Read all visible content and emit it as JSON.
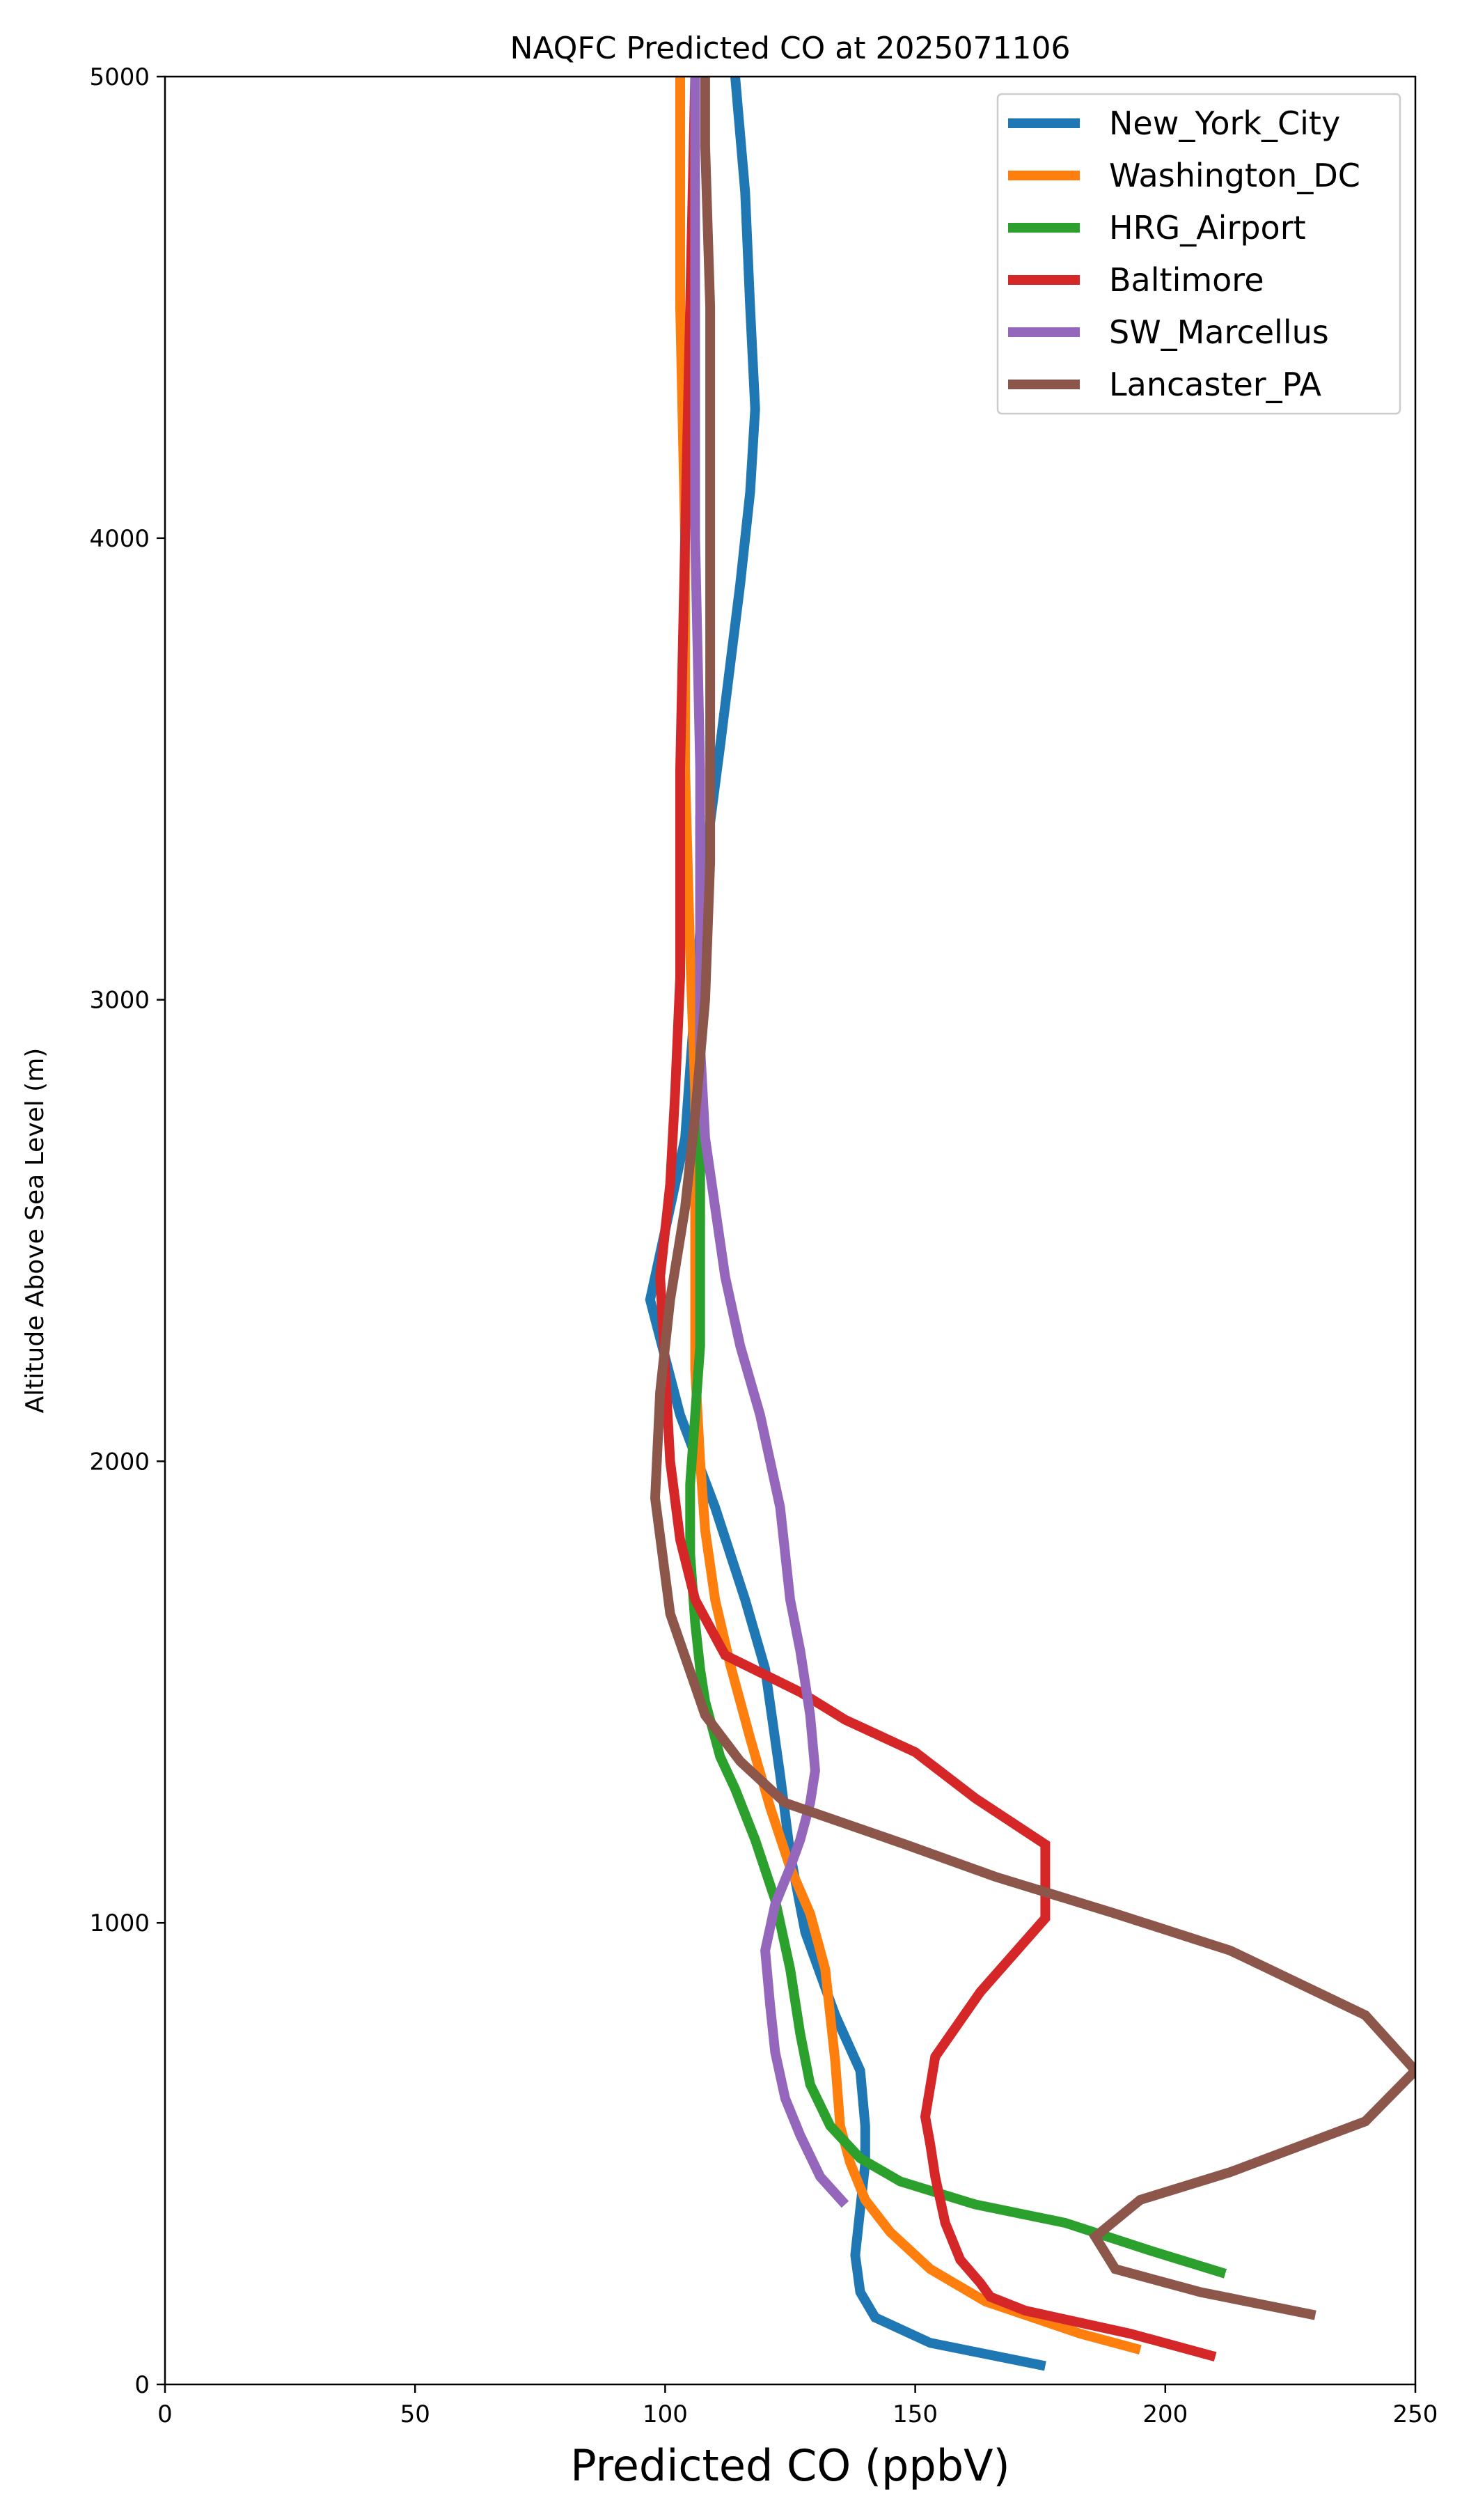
{
  "chart_data": {
    "type": "line",
    "title": "NAQFC Predicted CO at 2025071106",
    "xlabel": "Predicted CO (ppbV)",
    "ylabel": "Altitude Above Sea Level (m)",
    "xlim": [
      0,
      250
    ],
    "ylim": [
      0,
      5000
    ],
    "xticks": [
      0,
      50,
      100,
      150,
      200,
      250
    ],
    "yticks": [
      0,
      1000,
      2000,
      3000,
      4000,
      5000
    ],
    "grid": false,
    "legend_position": "top-right",
    "series": [
      {
        "name": "New_York_City",
        "color": "#1f77b4",
        "points": [
          [
            176,
            40
          ],
          [
            153,
            90
          ],
          [
            142,
            145
          ],
          [
            139,
            200
          ],
          [
            138,
            280
          ],
          [
            139,
            380
          ],
          [
            140,
            480
          ],
          [
            140,
            560
          ],
          [
            139,
            680
          ],
          [
            134,
            800
          ],
          [
            128,
            980
          ],
          [
            125,
            1150
          ],
          [
            123,
            1320
          ],
          [
            120,
            1550
          ],
          [
            116,
            1700
          ],
          [
            110,
            1900
          ],
          [
            103,
            2100
          ],
          [
            97,
            2350
          ],
          [
            101,
            2550
          ],
          [
            104,
            2700
          ],
          [
            106,
            3000
          ],
          [
            108,
            3300
          ],
          [
            111,
            3550
          ],
          [
            115,
            3900
          ],
          [
            117,
            4100
          ],
          [
            118,
            4280
          ],
          [
            117,
            4500
          ],
          [
            116,
            4750
          ],
          [
            114,
            5000
          ]
        ]
      },
      {
        "name": "Washington_DC",
        "color": "#ff7f0e",
        "points": [
          [
            195,
            75
          ],
          [
            183,
            110
          ],
          [
            164,
            180
          ],
          [
            153,
            250
          ],
          [
            145,
            330
          ],
          [
            140,
            400
          ],
          [
            137,
            480
          ],
          [
            135,
            560
          ],
          [
            134,
            700
          ],
          [
            132,
            900
          ],
          [
            129,
            1020
          ],
          [
            125,
            1120
          ],
          [
            121,
            1250
          ],
          [
            117,
            1400
          ],
          [
            113,
            1560
          ],
          [
            110,
            1700
          ],
          [
            108,
            1850
          ],
          [
            107,
            2000
          ],
          [
            106,
            2200
          ],
          [
            106,
            2500
          ],
          [
            106,
            2800
          ],
          [
            105,
            3100
          ],
          [
            104,
            3500
          ],
          [
            104,
            4000
          ],
          [
            103,
            4500
          ],
          [
            103,
            5000
          ]
        ]
      },
      {
        "name": "HRG_Airport",
        "color": "#2ca02c",
        "points": [
          [
            212,
            240
          ],
          [
            197,
            290
          ],
          [
            180,
            350
          ],
          [
            162,
            390
          ],
          [
            147,
            440
          ],
          [
            139,
            490
          ],
          [
            133,
            560
          ],
          [
            129,
            650
          ],
          [
            127,
            760
          ],
          [
            125,
            900
          ],
          [
            122,
            1050
          ],
          [
            118,
            1180
          ],
          [
            114,
            1290
          ],
          [
            111,
            1360
          ],
          [
            108,
            1480
          ],
          [
            107,
            1550
          ],
          [
            106,
            1650
          ],
          [
            105,
            1800
          ],
          [
            105,
            1950
          ],
          [
            106,
            2100
          ],
          [
            107,
            2250
          ],
          [
            107,
            2500
          ],
          [
            107,
            2800
          ],
          [
            107,
            3000
          ],
          [
            107,
            3200
          ],
          [
            107,
            3400
          ]
        ]
      },
      {
        "name": "Baltimore",
        "color": "#d62728",
        "points": [
          [
            210,
            60
          ],
          [
            193,
            110
          ],
          [
            172,
            160
          ],
          [
            165,
            190
          ],
          [
            163,
            220
          ],
          [
            159,
            270
          ],
          [
            156,
            350
          ],
          [
            154,
            450
          ],
          [
            153,
            520
          ],
          [
            152,
            580
          ],
          [
            154,
            710
          ],
          [
            163,
            850
          ],
          [
            176,
            1010
          ],
          [
            176,
            1170
          ],
          [
            162,
            1270
          ],
          [
            150,
            1370
          ],
          [
            136,
            1440
          ],
          [
            127,
            1500
          ],
          [
            112,
            1580
          ],
          [
            106,
            1700
          ],
          [
            103,
            1830
          ],
          [
            101,
            2000
          ],
          [
            100,
            2200
          ],
          [
            99,
            2400
          ],
          [
            101,
            2600
          ],
          [
            102,
            2800
          ],
          [
            103,
            3050
          ],
          [
            103,
            3500
          ],
          [
            104,
            4000
          ],
          [
            105,
            4500
          ],
          [
            106,
            5000
          ]
        ]
      },
      {
        "name": "SW_Marcellus",
        "color": "#9467bd",
        "points": [
          [
            136,
            390
          ],
          [
            131,
            450
          ],
          [
            127,
            540
          ],
          [
            124,
            620
          ],
          [
            122,
            720
          ],
          [
            121,
            820
          ],
          [
            120,
            940
          ],
          [
            122,
            1040
          ],
          [
            125,
            1120
          ],
          [
            127,
            1180
          ],
          [
            129,
            1260
          ],
          [
            130,
            1330
          ],
          [
            129,
            1450
          ],
          [
            127,
            1590
          ],
          [
            125,
            1700
          ],
          [
            123,
            1900
          ],
          [
            119,
            2100
          ],
          [
            115,
            2250
          ],
          [
            112,
            2400
          ],
          [
            110,
            2550
          ],
          [
            108,
            2700
          ],
          [
            107,
            2900
          ],
          [
            107,
            3100
          ],
          [
            107,
            3500
          ],
          [
            106,
            4000
          ],
          [
            106,
            4500
          ],
          [
            106,
            5000
          ]
        ]
      },
      {
        "name": "Lancaster_PA",
        "color": "#8c564b",
        "points": [
          [
            230,
            150
          ],
          [
            207,
            200
          ],
          [
            190,
            250
          ],
          [
            186,
            320
          ],
          [
            195,
            400
          ],
          [
            213,
            460
          ],
          [
            240,
            570
          ],
          [
            250,
            680
          ],
          [
            240,
            800
          ],
          [
            213,
            940
          ],
          [
            190,
            1020
          ],
          [
            166,
            1100
          ],
          [
            148,
            1170
          ],
          [
            124,
            1260
          ],
          [
            115,
            1350
          ],
          [
            108,
            1450
          ],
          [
            101,
            1670
          ],
          [
            98,
            1920
          ],
          [
            99,
            2150
          ],
          [
            101,
            2350
          ],
          [
            104,
            2550
          ],
          [
            106,
            2750
          ],
          [
            108,
            3000
          ],
          [
            109,
            3300
          ],
          [
            109,
            3550
          ],
          [
            109,
            4000
          ],
          [
            109,
            4500
          ],
          [
            108,
            4850
          ],
          [
            108,
            5000
          ]
        ]
      }
    ]
  }
}
